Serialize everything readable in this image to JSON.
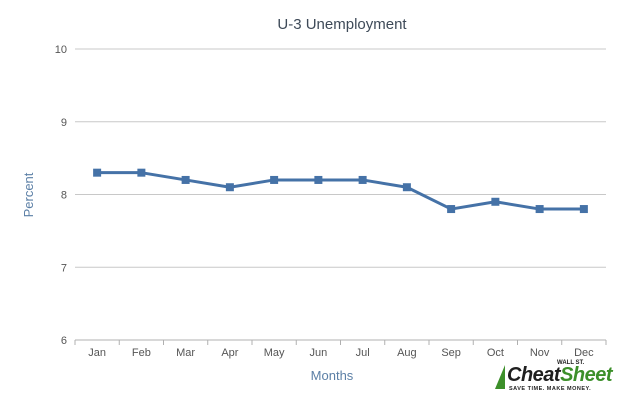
{
  "chart_data": {
    "type": "line",
    "title": "U-3 Unemployment",
    "xlabel": "Months",
    "ylabel": "Percent",
    "categories": [
      "Jan",
      "Feb",
      "Mar",
      "Apr",
      "May",
      "Jun",
      "Jul",
      "Aug",
      "Sep",
      "Oct",
      "Nov",
      "Dec"
    ],
    "series": [
      {
        "values": [
          8.3,
          8.3,
          8.2,
          8.1,
          8.2,
          8.2,
          8.2,
          8.1,
          7.8,
          7.9,
          7.8,
          7.8
        ]
      }
    ],
    "ylim": [
      6,
      10
    ],
    "yticks": [
      "6",
      "7",
      "8",
      "9",
      "10"
    ],
    "grid": true,
    "line_color": "#4572a7"
  },
  "logo": {
    "top": "WALL ST.",
    "word_a": "Cheat",
    "word_b": "Sheet",
    "tagline": "SAVE TIME. MAKE MONEY."
  }
}
